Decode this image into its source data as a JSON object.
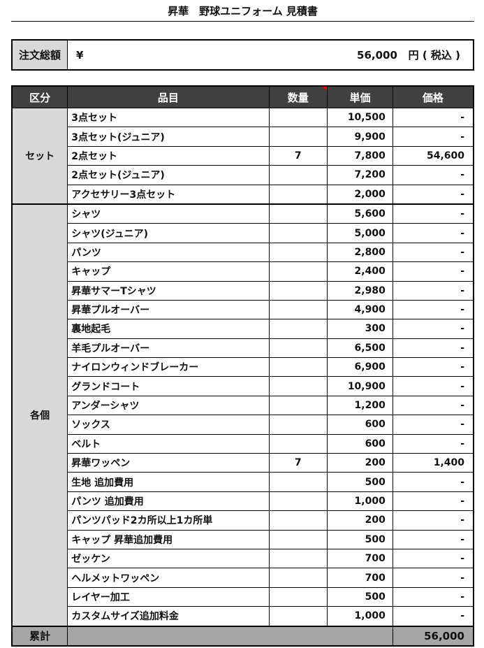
{
  "title": "昇華　野球ユニフォーム 見積書",
  "summary": {
    "label": "注文総額",
    "currency": "¥",
    "amount": "56,000",
    "unit": "円 ( 税込 )"
  },
  "headers": [
    "区分",
    "品目",
    "数量",
    "単価",
    "価格"
  ],
  "groups": [
    {
      "category": "セット",
      "rows": [
        {
          "item": "3点セット",
          "qty": "",
          "unit_price": "10,500",
          "price": "-"
        },
        {
          "item": "3点セット(ジュニア)",
          "qty": "",
          "unit_price": "9,900",
          "price": "-"
        },
        {
          "item": "2点セット",
          "qty": "7",
          "unit_price": "7,800",
          "price": "54,600"
        },
        {
          "item": "2点セット(ジュニア)",
          "qty": "",
          "unit_price": "7,200",
          "price": "-"
        },
        {
          "item": "アクセサリー3点セット",
          "qty": "",
          "unit_price": "2,000",
          "price": "-"
        }
      ]
    },
    {
      "category": "各個",
      "rows": [
        {
          "item": "シャツ",
          "qty": "",
          "unit_price": "5,600",
          "price": "-"
        },
        {
          "item": "シャツ(ジュニア)",
          "qty": "",
          "unit_price": "5,000",
          "price": "-"
        },
        {
          "item": "パンツ",
          "qty": "",
          "unit_price": "2,800",
          "price": "-"
        },
        {
          "item": "キャップ",
          "qty": "",
          "unit_price": "2,400",
          "price": "-"
        },
        {
          "item": "昇華サマーTシャツ",
          "qty": "",
          "unit_price": "2,980",
          "price": "-"
        },
        {
          "item": "昇華プルオーバー",
          "qty": "",
          "unit_price": "4,900",
          "price": "-"
        },
        {
          "item": "裏地起毛",
          "qty": "",
          "unit_price": "300",
          "price": "-"
        },
        {
          "item": "羊毛プルオーバー",
          "qty": "",
          "unit_price": "6,500",
          "price": "-"
        },
        {
          "item": "ナイロンウィンドブレーカー",
          "qty": "",
          "unit_price": "6,900",
          "price": "-"
        },
        {
          "item": "グランドコート",
          "qty": "",
          "unit_price": "10,900",
          "price": "-"
        },
        {
          "item": "アンダーシャツ",
          "qty": "",
          "unit_price": "1,200",
          "price": "-"
        },
        {
          "item": "ソックス",
          "qty": "",
          "unit_price": "600",
          "price": "-"
        },
        {
          "item": "ベルト",
          "qty": "",
          "unit_price": "600",
          "price": "-"
        },
        {
          "item": "昇華ワッペン",
          "qty": "7",
          "unit_price": "200",
          "price": "1,400"
        },
        {
          "item": "生地 追加費用",
          "qty": "",
          "unit_price": "500",
          "price": "-"
        },
        {
          "item": "パンツ 追加費用",
          "qty": "",
          "unit_price": "1,000",
          "price": "-"
        },
        {
          "item": "パンツパッド2カ所以上1カ所単",
          "qty": "",
          "unit_price": "200",
          "price": "-"
        },
        {
          "item": "キャップ 昇華追加費用",
          "qty": "",
          "unit_price": "500",
          "price": "-"
        },
        {
          "item": "ゼッケン",
          "qty": "",
          "unit_price": "700",
          "price": "-"
        },
        {
          "item": "ヘルメットワッペン",
          "qty": "",
          "unit_price": "700",
          "price": "-"
        },
        {
          "item": "レイヤー加工",
          "qty": "",
          "unit_price": "500",
          "price": "-"
        },
        {
          "item": "カスタムサイズ追加料金",
          "qty": "",
          "unit_price": "1,000",
          "price": "-"
        }
      ]
    }
  ],
  "footer": {
    "label": "累計",
    "total": "56,000"
  },
  "colors": {
    "header_bg": "#404040",
    "category_bg": "#d9d9d9",
    "footer_bg": "#a6a6a6",
    "comment_flag": "#ff0000"
  }
}
